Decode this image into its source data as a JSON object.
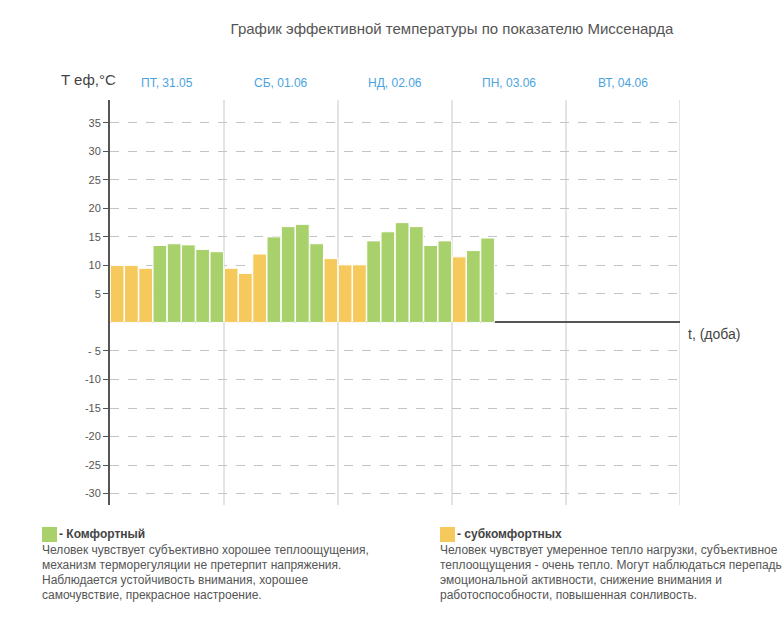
{
  "chart_data": {
    "type": "bar",
    "title": "График эффективной температуры по показателю Миссенарда",
    "y_label": "T еф,°C",
    "x_label": "t, (доба)",
    "days": [
      "ПТ, 31.05",
      "СБ, 01.06",
      "НД, 02.06",
      "ПН, 03.06",
      "ВТ, 04.06"
    ],
    "categories": [
      null,
      null,
      null,
      null,
      null,
      null,
      null,
      null,
      null,
      null,
      null,
      null,
      null,
      null,
      null,
      null,
      null,
      null,
      null,
      null,
      null,
      null,
      null,
      null,
      null,
      null,
      null,
      null,
      null,
      null,
      null,
      null,
      null,
      null,
      null,
      null,
      null,
      null,
      null,
      null
    ],
    "values": [
      10,
      10,
      9.5,
      13.5,
      13.8,
      13.6,
      12.8,
      12.4,
      9.5,
      8.6,
      12,
      15,
      16.8,
      17.2,
      13.8,
      11.2,
      10.1,
      10.1,
      14.3,
      15.9,
      17.5,
      16.8,
      13.5,
      14.3,
      11.5,
      12.6,
      14.8,
      null,
      null,
      null,
      null,
      null,
      null,
      null,
      null,
      null,
      null,
      null,
      null,
      null
    ],
    "colors": [
      "#f6c95c",
      "#f6c95c",
      "#f6c95c",
      "#a9d16b",
      "#a9d16b",
      "#a9d16b",
      "#a9d16b",
      "#a9d16b",
      "#f6c95c",
      "#f6c95c",
      "#f6c95c",
      "#a9d16b",
      "#a9d16b",
      "#a9d16b",
      "#a9d16b",
      "#f6c95c",
      "#f6c95c",
      "#f6c95c",
      "#a9d16b",
      "#a9d16b",
      "#a9d16b",
      "#a9d16b",
      "#a9d16b",
      "#a9d16b",
      "#f6c95c",
      "#a9d16b",
      "#a9d16b",
      null,
      null,
      null,
      null,
      null,
      null,
      null,
      null,
      null,
      null,
      null,
      null,
      null
    ],
    "ylim": [
      -32,
      39
    ],
    "yticks": [
      35,
      30,
      25,
      20,
      15,
      10,
      5,
      {
        "value": -5,
        "label": "- 5"
      },
      -10,
      -15,
      -20,
      -25,
      -30
    ],
    "grid": true,
    "tick_labels": "y",
    "notes": [
      {
        "label": "- Комфортный",
        "color": "#a9d16b",
        "text": "Человек чувствует субъективно хорошее теплоощущения, механизм терморегуляции не претерпит напряжения. Наблюдается устойчивость внимания, хорошее самочувствие, прекрасное настроение."
      },
      {
        "label": "- субкомфортных",
        "color": "#f6c95c",
        "text": "Человек чувствует умеренное тепло нагрузки, субъективное теплоощущения - очень тепло. Могут наблюдаться перепады эмоциональной активности, снижение внимания и работоспособности, повышенная сонливость."
      }
    ]
  }
}
